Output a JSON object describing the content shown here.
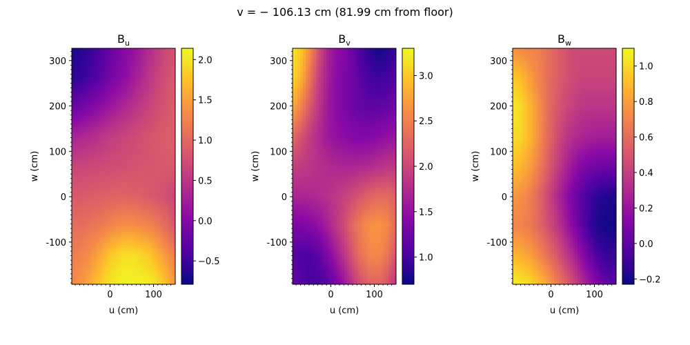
{
  "figure": {
    "title": "v = − 106.13 cm (81.99 cm from floor)"
  },
  "colormap": {
    "name": "plasma",
    "stops": [
      "#0d0887",
      "#5302a3",
      "#8b0aa5",
      "#b83289",
      "#db5c68",
      "#f48849",
      "#febd2a",
      "#f0f921"
    ]
  },
  "chart_data": [
    {
      "type": "heatmap",
      "title": "B",
      "title_sub": "u",
      "xlabel": "u (cm)",
      "ylabel": "w (cm)",
      "xlim": [
        -88,
        150
      ],
      "ylim": [
        -193,
        327
      ],
      "xticks": [
        0,
        100
      ],
      "yticks": [
        -100,
        0,
        100,
        200,
        300
      ],
      "clim": [
        -0.79,
        2.14
      ],
      "cbar_ticks": [
        -0.5,
        0.0,
        0.5,
        1.0,
        1.5,
        2.0
      ],
      "cbar_tick_labels": [
        "−0.5",
        "0.0",
        "0.5",
        "1.0",
        "1.5",
        "2.0"
      ],
      "cols": 13,
      "rows": 9,
      "grid_w_top_down": [
        [
          -0.7,
          -0.65,
          -0.55,
          -0.45,
          -0.3,
          -0.15,
          0.0,
          0.1,
          0.25,
          0.4,
          0.55,
          0.7,
          0.8
        ],
        [
          -0.6,
          -0.55,
          -0.45,
          -0.35,
          -0.2,
          -0.05,
          0.05,
          0.2,
          0.35,
          0.5,
          0.65,
          0.78,
          0.85
        ],
        [
          -0.2,
          -0.15,
          -0.05,
          0.05,
          0.15,
          0.25,
          0.35,
          0.45,
          0.55,
          0.65,
          0.75,
          0.82,
          0.9
        ],
        [
          0.3,
          0.35,
          0.4,
          0.45,
          0.55,
          0.6,
          0.65,
          0.7,
          0.75,
          0.8,
          0.85,
          0.88,
          0.9
        ],
        [
          0.65,
          0.66,
          0.68,
          0.7,
          0.72,
          0.74,
          0.76,
          0.78,
          0.8,
          0.82,
          0.84,
          0.85,
          0.85
        ],
        [
          0.85,
          0.86,
          0.88,
          0.9,
          0.92,
          0.94,
          0.95,
          0.93,
          0.9,
          0.85,
          0.8,
          0.75,
          0.65
        ],
        [
          1.05,
          1.05,
          1.1,
          1.15,
          1.22,
          1.3,
          1.35,
          1.35,
          1.3,
          1.25,
          1.15,
          1.0,
          0.8
        ],
        [
          1.2,
          1.25,
          1.35,
          1.5,
          1.7,
          1.85,
          1.95,
          1.95,
          1.9,
          1.8,
          1.6,
          1.4,
          1.2
        ],
        [
          1.3,
          1.4,
          1.55,
          1.75,
          1.95,
          2.05,
          2.1,
          2.1,
          2.08,
          2.05,
          1.95,
          1.7,
          1.4
        ]
      ]
    },
    {
      "type": "heatmap",
      "title": "B",
      "title_sub": "v",
      "xlabel": "u (cm)",
      "ylabel": "w (cm)",
      "xlim": [
        -88,
        150
      ],
      "ylim": [
        -193,
        327
      ],
      "xticks": [
        0,
        100
      ],
      "yticks": [
        -100,
        0,
        100,
        200,
        300
      ],
      "clim": [
        0.7,
        3.3
      ],
      "cbar_ticks": [
        1.0,
        1.5,
        2.0,
        2.5,
        3.0
      ],
      "cbar_tick_labels": [
        "1.0",
        "1.5",
        "2.0",
        "2.5",
        "3.0"
      ],
      "cols": 13,
      "rows": 9,
      "grid_w_top_down": [
        [
          3.2,
          3.0,
          2.6,
          2.1,
          1.7,
          1.5,
          1.4,
          1.2,
          1.0,
          0.85,
          0.75,
          0.8,
          0.95
        ],
        [
          3.1,
          2.85,
          2.4,
          1.95,
          1.65,
          1.45,
          1.35,
          1.25,
          1.1,
          1.0,
          0.95,
          1.0,
          1.1
        ],
        [
          2.8,
          2.5,
          2.15,
          1.85,
          1.6,
          1.45,
          1.35,
          1.25,
          1.18,
          1.15,
          1.15,
          1.2,
          1.3
        ],
        [
          2.3,
          2.1,
          1.9,
          1.75,
          1.6,
          1.5,
          1.45,
          1.4,
          1.38,
          1.4,
          1.45,
          1.5,
          1.55
        ],
        [
          1.95,
          1.9,
          1.85,
          1.8,
          1.75,
          1.72,
          1.7,
          1.7,
          1.72,
          1.75,
          1.8,
          1.85,
          1.85
        ],
        [
          1.7,
          1.7,
          1.72,
          1.75,
          1.8,
          1.88,
          1.95,
          2.05,
          2.15,
          2.25,
          2.3,
          2.3,
          2.2
        ],
        [
          1.35,
          1.35,
          1.4,
          1.5,
          1.65,
          1.85,
          2.05,
          2.3,
          2.5,
          2.62,
          2.65,
          2.55,
          2.3
        ],
        [
          1.1,
          1.05,
          1.05,
          1.15,
          1.35,
          1.6,
          1.85,
          2.15,
          2.4,
          2.55,
          2.55,
          2.4,
          2.1
        ],
        [
          1.2,
          1.1,
          1.0,
          1.0,
          1.1,
          1.3,
          1.55,
          1.85,
          2.1,
          2.25,
          2.25,
          2.1,
          1.8
        ]
      ]
    },
    {
      "type": "heatmap",
      "title": "B",
      "title_sub": "w",
      "xlabel": "u (cm)",
      "ylabel": "w (cm)",
      "xlim": [
        -88,
        150
      ],
      "ylim": [
        -193,
        327
      ],
      "xticks": [
        0,
        100
      ],
      "yticks": [
        -100,
        0,
        100,
        200,
        300
      ],
      "clim": [
        -0.23,
        1.1
      ],
      "cbar_ticks": [
        -0.2,
        0.0,
        0.2,
        0.4,
        0.6,
        0.8,
        1.0
      ],
      "cbar_tick_labels": [
        "−0.2",
        "0.0",
        "0.2",
        "0.4",
        "0.6",
        "0.8",
        "1.0"
      ],
      "cols": 13,
      "rows": 9,
      "grid_w_top_down": [
        [
          0.75,
          0.72,
          0.7,
          0.68,
          0.62,
          0.55,
          0.5,
          0.45,
          0.45,
          0.45,
          0.45,
          0.45,
          0.45
        ],
        [
          0.95,
          0.9,
          0.8,
          0.7,
          0.62,
          0.55,
          0.5,
          0.45,
          0.42,
          0.42,
          0.42,
          0.42,
          0.42
        ],
        [
          1.05,
          1.0,
          0.88,
          0.75,
          0.62,
          0.52,
          0.45,
          0.4,
          0.36,
          0.35,
          0.35,
          0.35,
          0.35
        ],
        [
          1.02,
          0.98,
          0.88,
          0.75,
          0.6,
          0.48,
          0.38,
          0.32,
          0.28,
          0.26,
          0.25,
          0.25,
          0.25
        ],
        [
          0.92,
          0.88,
          0.8,
          0.68,
          0.55,
          0.42,
          0.3,
          0.2,
          0.12,
          0.08,
          0.05,
          0.05,
          0.05
        ],
        [
          0.78,
          0.75,
          0.68,
          0.58,
          0.45,
          0.32,
          0.2,
          0.08,
          -0.02,
          -0.1,
          -0.15,
          -0.18,
          -0.18
        ],
        [
          0.7,
          0.7,
          0.65,
          0.58,
          0.48,
          0.38,
          0.26,
          0.12,
          0.0,
          -0.12,
          -0.2,
          -0.22,
          -0.22
        ],
        [
          0.88,
          0.85,
          0.8,
          0.72,
          0.62,
          0.52,
          0.4,
          0.28,
          0.15,
          0.02,
          -0.08,
          -0.12,
          -0.12
        ],
        [
          1.08,
          1.05,
          1.0,
          0.92,
          0.82,
          0.7,
          0.58,
          0.45,
          0.32,
          0.2,
          0.08,
          0.0,
          -0.02
        ]
      ]
    }
  ]
}
